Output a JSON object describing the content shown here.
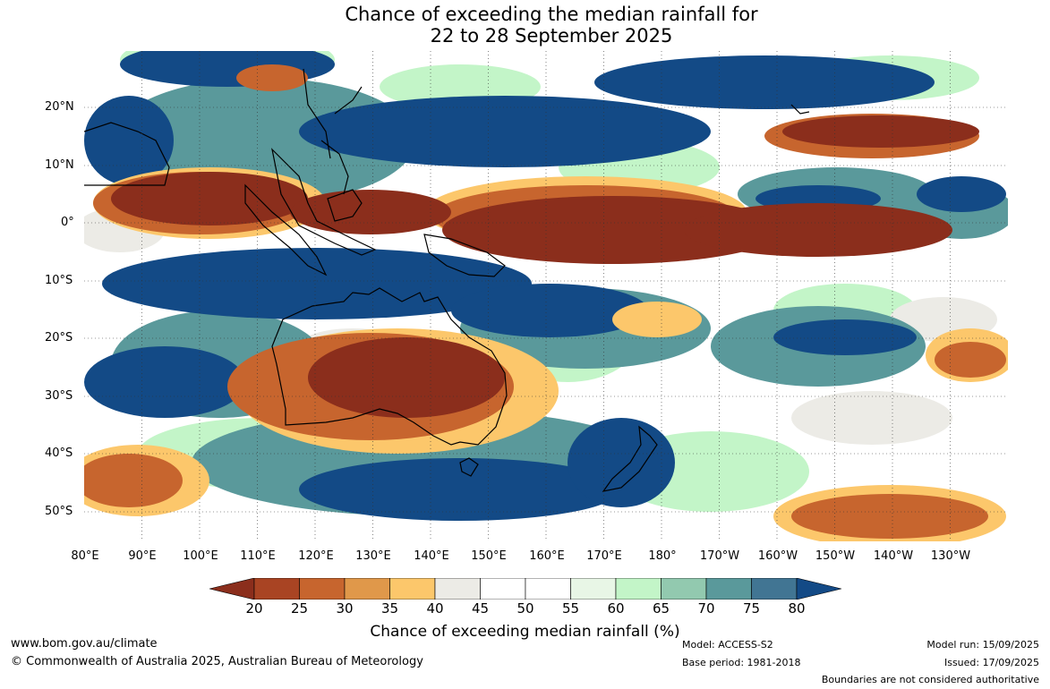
{
  "title": {
    "line1": "Chance of exceeding the median rainfall for",
    "line2": "22 to 28 September 2025"
  },
  "lat_labels": [
    "20°N",
    "10°N",
    "0°",
    "10°S",
    "20°S",
    "30°S",
    "40°S",
    "50°S"
  ],
  "lon_labels": [
    "80°E",
    "90°E",
    "100°E",
    "110°E",
    "120°E",
    "130°E",
    "140°E",
    "150°E",
    "160°E",
    "170°E",
    "180°",
    "170°W",
    "160°W",
    "150°W",
    "140°W",
    "130°W"
  ],
  "colorbar": {
    "ticks": [
      "20",
      "25",
      "30",
      "35",
      "40",
      "45",
      "50",
      "55",
      "60",
      "65",
      "70",
      "75",
      "80"
    ],
    "colors": [
      "#8b2e1c",
      "#a94423",
      "#c7652e",
      "#e0984a",
      "#fcc76b",
      "#ecebe6",
      "#ffffff",
      "#ffffff",
      "#e8f6e6",
      "#c3f5c8",
      "#92c9af",
      "#5a999b",
      "#417593",
      "#134a86"
    ],
    "title": "Chance of exceeding median rainfall (%)"
  },
  "footer": {
    "url": "www.bom.gov.au/climate",
    "copyright": "© Commonwealth of Australia 2025, Australian Bureau of Meteorology",
    "model": "Model: ACCESS-S2",
    "base_period": "Base period: 1981-2018",
    "model_run": "Model run: 15/09/2025",
    "issued": "Issued: 17/09/2025",
    "boundaries": "Boundaries are not considered authoritative"
  }
}
